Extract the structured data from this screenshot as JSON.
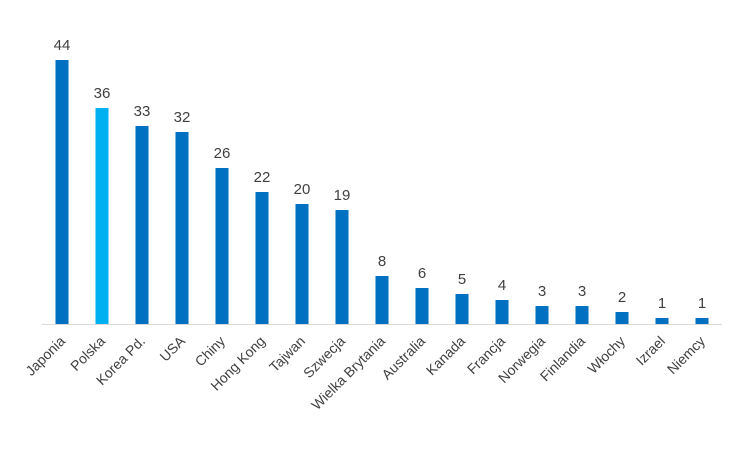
{
  "chart_data": {
    "type": "bar",
    "title": "",
    "xlabel": "",
    "ylabel": "",
    "categories": [
      "Japonia",
      "Polska",
      "Korea Pd.",
      "USA",
      "Chiny",
      "Hong Kong",
      "Tajwan",
      "Szwecja",
      "Wielka Brytania",
      "Australia",
      "Kanada",
      "Francja",
      "Norwegia",
      "Finlandia",
      "Włochy",
      "Izrael",
      "Niemcy"
    ],
    "values": [
      44,
      36,
      33,
      32,
      26,
      22,
      20,
      19,
      8,
      6,
      5,
      4,
      3,
      3,
      2,
      1,
      1
    ],
    "ylim": [
      0,
      44
    ],
    "grid": false,
    "legend": "none",
    "data_labels": true,
    "highlight_category": "Polska",
    "colors": {
      "bar": "#0070C0",
      "highlight": "#00B0F0",
      "axis": "#D9D9D9",
      "text": "#404040"
    }
  }
}
